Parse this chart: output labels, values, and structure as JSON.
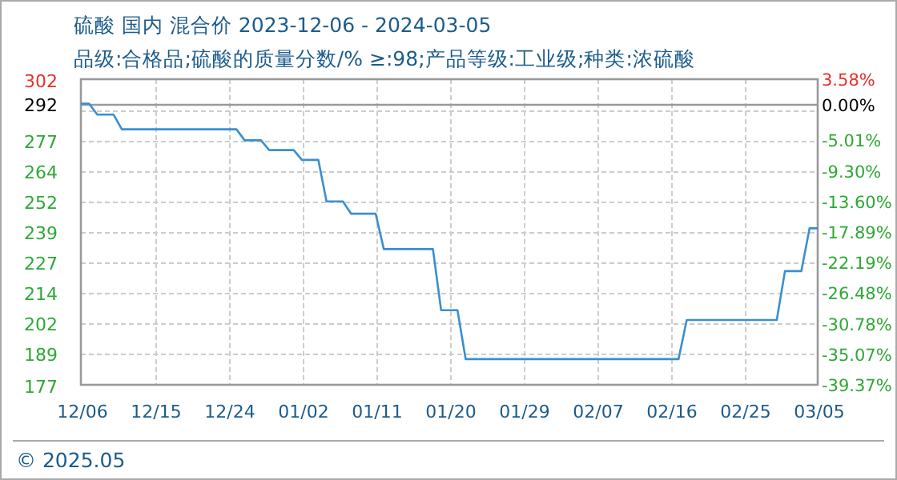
{
  "chart_data": {
    "type": "line",
    "title": "硫酸 国内 混合价 2023-12-06 - 2024-03-05",
    "subtitle": "品级:合格品;硫酸的质量分数/% ≥:98;产品等级:工业级;种类:浓硫酸",
    "x": [
      "2023-12-06",
      "2023-12-07",
      "2023-12-08",
      "2023-12-10",
      "2023-12-11",
      "2023-12-25",
      "2023-12-26",
      "2023-12-28",
      "2023-12-29",
      "2024-01-01",
      "2024-01-02",
      "2024-01-04",
      "2024-01-05",
      "2024-01-07",
      "2024-01-08",
      "2024-01-11",
      "2024-01-12",
      "2024-01-18",
      "2024-01-19",
      "2024-01-21",
      "2024-01-22",
      "2024-02-17",
      "2024-02-18",
      "2024-02-29",
      "2024-03-01",
      "2024-03-03",
      "2024-03-04",
      "2024-03-05"
    ],
    "series": [
      {
        "color": "#3a8fd0",
        "values": [
          292,
          292,
          287.5,
          287.5,
          281.5,
          281.5,
          277,
          277,
          273,
          273,
          269,
          269,
          252,
          252,
          247,
          247,
          232.5,
          232.5,
          207.5,
          207.5,
          187.5,
          187.5,
          203.5,
          203.5,
          223.5,
          223.5,
          241,
          241
        ]
      }
    ],
    "xlim": [
      "2023-12-06",
      "2024-03-05"
    ],
    "xticks": [
      {
        "value": "2023-12-06",
        "label": "12/06"
      },
      {
        "value": "2023-12-15",
        "label": "12/15"
      },
      {
        "value": "2023-12-24",
        "label": "12/24"
      },
      {
        "value": "2024-01-02",
        "label": "01/02"
      },
      {
        "value": "2024-01-11",
        "label": "01/11"
      },
      {
        "value": "2024-01-20",
        "label": "01/20"
      },
      {
        "value": "2024-01-29",
        "label": "01/29"
      },
      {
        "value": "2024-02-07",
        "label": "02/07"
      },
      {
        "value": "2024-02-16",
        "label": "02/16"
      },
      {
        "value": "2024-02-25",
        "label": "02/25"
      },
      {
        "value": "2024-03-05",
        "label": "03/05"
      }
    ],
    "ylim": [
      177,
      302
    ],
    "yticks": [
      177,
      {
        "value": 189.5,
        "label": "189"
      },
      202,
      {
        "value": 214.5,
        "label": "214"
      },
      227,
      {
        "value": 239.5,
        "label": "239"
      },
      252,
      {
        "value": 264.5,
        "label": "264"
      },
      277,
      {
        "value": 289.5,
        "label": null
      },
      302
    ],
    "y2lim": [
      -39.37,
      3.58
    ],
    "y2ticks": [
      {
        "value": -39.37,
        "label": "-39.37%"
      },
      {
        "value": -35.07,
        "label": "-35.07%"
      },
      {
        "value": -30.78,
        "label": "-30.78%"
      },
      {
        "value": -26.48,
        "label": "-26.48%"
      },
      {
        "value": -22.19,
        "label": "-22.19%"
      },
      {
        "value": -17.89,
        "label": "-17.89%"
      },
      {
        "value": -13.6,
        "label": "-13.60%"
      },
      {
        "value": -9.3,
        "label": "-9.30%"
      },
      {
        "value": -5.01,
        "label": "-5.01%"
      },
      {
        "value": 0,
        "label": "0.00%"
      },
      {
        "value": 3.58,
        "label": "3.58%"
      }
    ],
    "ref_lines": [
      {
        "axis": "y",
        "value": 292,
        "label": "292",
        "color": "#999999"
      }
    ],
    "grid": true,
    "line_style": "solid",
    "marker": "none",
    "annotations": [
      "© 2025.05"
    ]
  }
}
